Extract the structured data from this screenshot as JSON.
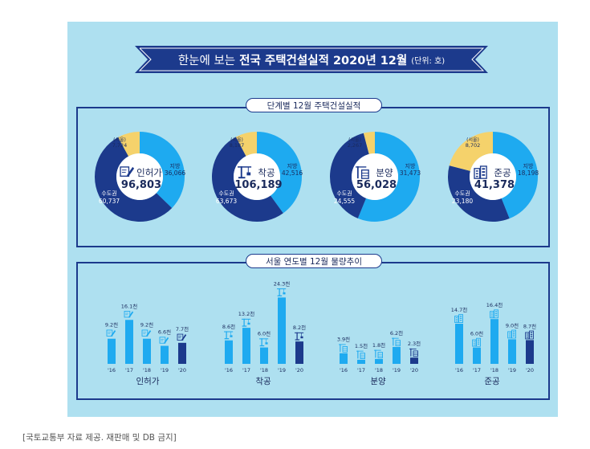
{
  "banner": {
    "prefix": "한눈에 보는",
    "title": "전국 주택건설실적 2020년 12월",
    "unit": "(단위: 호)"
  },
  "sections": {
    "donuts_title": "단계별 12월 주택건설실적",
    "bars_title": "서울 연도별 12월 물량추이"
  },
  "source": "[국토교통부 자료 제공. 재판매 및 DB 금지]",
  "colors": {
    "background": "#aee0f0",
    "dark_blue": "#1c3a8c",
    "light_blue": "#1eaaf0",
    "yellow": "#f5d26b",
    "banner": "#1c3a8c"
  },
  "chart_data": [
    {
      "type": "pie",
      "center": {
        "label": "인허가",
        "total": "96,803",
        "icon": "pencil-paper-icon"
      },
      "slices": [
        {
          "name": "지방",
          "value_label": "36,066",
          "value": 36066,
          "color": "#1eaaf0"
        },
        {
          "name": "수도권",
          "value_label": "60,737",
          "value": 60737,
          "color": "#1c3a8c"
        },
        {
          "name": "(서울)",
          "value_label": "7,724",
          "value": 7724,
          "color": "#f5d26b"
        }
      ]
    },
    {
      "type": "pie",
      "center": {
        "label": "착공",
        "total": "106,189",
        "icon": "crane-icon"
      },
      "slices": [
        {
          "name": "지방",
          "value_label": "42,516",
          "value": 42516,
          "color": "#1eaaf0"
        },
        {
          "name": "수도권",
          "value_label": "63,673",
          "value": 63673,
          "color": "#1c3a8c"
        },
        {
          "name": "(서울)",
          "value_label": "8,187",
          "value": 8187,
          "color": "#f5d26b"
        }
      ]
    },
    {
      "type": "pie",
      "center": {
        "label": "분양",
        "total": "56,028",
        "icon": "building-crane-icon"
      },
      "slices": [
        {
          "name": "지방",
          "value_label": "31,473",
          "value": 31473,
          "color": "#1eaaf0"
        },
        {
          "name": "수도권",
          "value_label": "24,555",
          "value": 24555,
          "color": "#1c3a8c"
        },
        {
          "name": "(서울)",
          "value_label": "2,267",
          "value": 2267,
          "color": "#f5d26b"
        }
      ]
    },
    {
      "type": "pie",
      "center": {
        "label": "준공",
        "total": "41,378",
        "icon": "apartment-icon"
      },
      "slices": [
        {
          "name": "지방",
          "value_label": "18,198",
          "value": 18198,
          "color": "#1eaaf0"
        },
        {
          "name": "수도권",
          "value_label": "23,180",
          "value": 23180,
          "color": "#1c3a8c"
        },
        {
          "name": "(서울)",
          "value_label": "8,702",
          "value": 8702,
          "color": "#f5d26b"
        }
      ]
    },
    {
      "type": "bar",
      "group": "인허가",
      "categories": [
        "'16",
        "'17",
        "'18",
        "'19",
        "'20"
      ],
      "values": [
        9.2,
        16.1,
        9.2,
        6.6,
        7.7
      ],
      "value_labels": [
        "9.2천",
        "16.1천",
        "9.2천",
        "6.6천",
        "7.7천"
      ],
      "icon": "pencil-paper-icon"
    },
    {
      "type": "bar",
      "group": "착공",
      "categories": [
        "'16",
        "'17",
        "'18",
        "'19",
        "'20"
      ],
      "values": [
        8.6,
        13.2,
        6.0,
        24.3,
        8.2
      ],
      "value_labels": [
        "8.6천",
        "13.2천",
        "6.0천",
        "24.3천",
        "8.2천"
      ],
      "icon": "crane-icon"
    },
    {
      "type": "bar",
      "group": "분양",
      "categories": [
        "'16",
        "'17",
        "'18",
        "'19",
        "'20"
      ],
      "values": [
        3.9,
        1.5,
        1.8,
        6.2,
        2.3
      ],
      "value_labels": [
        "3.9천",
        "1.5천",
        "1.8천",
        "6.2천",
        "2.3천"
      ],
      "icon": "building-crane-icon"
    },
    {
      "type": "bar",
      "group": "준공",
      "categories": [
        "'16",
        "'17",
        "'18",
        "'19",
        "'20"
      ],
      "values": [
        14.7,
        6.0,
        16.4,
        9.0,
        8.7
      ],
      "value_labels": [
        "14.7천",
        "6.0천",
        "16.4천",
        "9.0천",
        "8.7천"
      ],
      "icon": "apartment-icon"
    }
  ]
}
